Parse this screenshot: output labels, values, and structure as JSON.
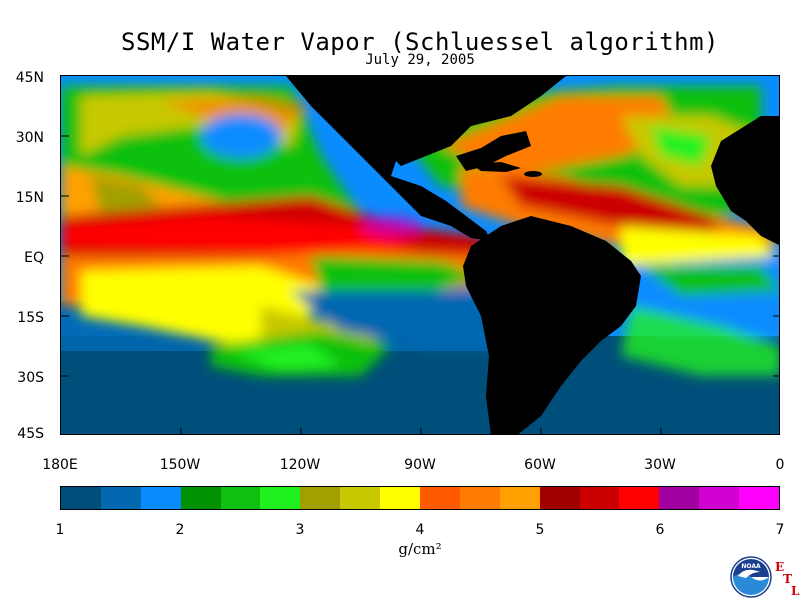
{
  "title": "SSM/I Water Vapor (Schluessel algorithm)",
  "date": "July 29, 2005",
  "latitude_labels": [
    "45N",
    "30N",
    "15N",
    "EQ",
    "15S",
    "30S",
    "45S"
  ],
  "longitude_labels": [
    "180E",
    "150W",
    "120W",
    "90W",
    "60W",
    "30W",
    "0"
  ],
  "colorbar": {
    "colors": [
      "#004f7a",
      "#0067b0",
      "#0a8cff",
      "#009000",
      "#10c010",
      "#20f020",
      "#a0a000",
      "#c8c800",
      "#ffff00",
      "#ff5a00",
      "#ff7c00",
      "#ffa000",
      "#a00000",
      "#cc0000",
      "#ff0000",
      "#a000a0",
      "#d000d0",
      "#ff00ff"
    ],
    "tick_labels": [
      "1",
      "2",
      "3",
      "4",
      "5",
      "6",
      "7"
    ],
    "units": "g/cm²"
  },
  "logo": {
    "name": "NOAA",
    "etl_letters": [
      "E",
      "T",
      "L"
    ]
  },
  "palette": {
    "land": "#000000",
    "ocean_low": "#004f7a",
    "ocean_mid": "#0a8cff",
    "green": "#10c010",
    "yellow": "#ffff00",
    "orange": "#ff8000",
    "red": "#cc0000",
    "magenta": "#d000d0"
  }
}
